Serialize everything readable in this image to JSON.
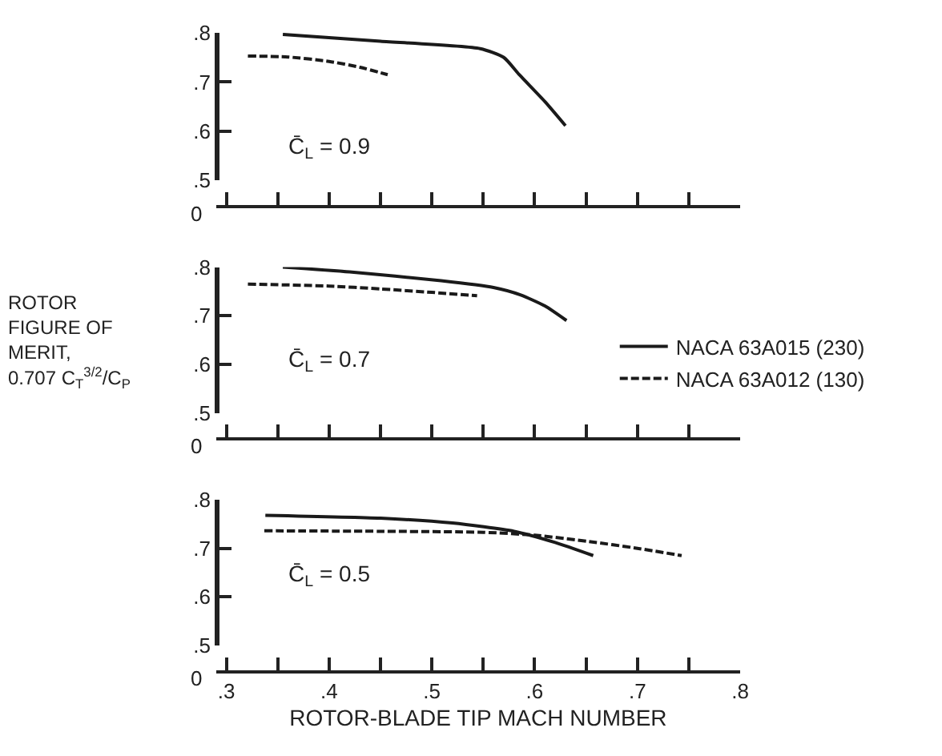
{
  "chart_data": [
    {
      "type": "line",
      "ylabel": "ROTOR\nFIGURE OF\nMERIT,\n0.707 C$_{T}$$^{3/2}$/C$_{P}$",
      "annotations": [
        "C̄$_{L}$ = 0.9",
        "0"
      ],
      "xlim": [
        0.29,
        0.8
      ],
      "xticks": [
        {
          "value": 0.3,
          "label": null
        },
        {
          "value": 0.35,
          "label": null
        },
        {
          "value": 0.4,
          "label": null
        },
        {
          "value": 0.45,
          "label": null
        },
        {
          "value": 0.5,
          "label": null
        },
        {
          "value": 0.55,
          "label": null
        },
        {
          "value": 0.6,
          "label": null
        },
        {
          "value": 0.65,
          "label": null
        },
        {
          "value": 0.7,
          "label": null
        },
        {
          "value": 0.75,
          "label": null
        },
        {
          "value": 0.8,
          "label": null
        }
      ],
      "ylim": [
        0.5,
        0.8
      ],
      "yticks": [
        {
          "value": 0.5,
          "label": ".5"
        },
        {
          "value": 0.6,
          "label": ".6"
        },
        {
          "value": 0.7,
          "label": ".7"
        },
        {
          "value": 0.8,
          "label": ".8"
        }
      ],
      "tick_labels": "y",
      "legend": false,
      "marker": "none",
      "series": [
        {
          "color": "#1a1a1a",
          "line_style": "solid",
          "x": [
            0.355,
            0.45,
            0.547,
            0.57,
            0.585,
            0.61,
            0.63
          ],
          "values": [
            0.797,
            0.783,
            0.768,
            0.75,
            0.715,
            0.66,
            0.611
          ]
        },
        {
          "color": "#1a1a1a",
          "line_style": "dashed",
          "x": [
            0.321,
            0.36,
            0.4,
            0.43,
            0.457
          ],
          "values": [
            0.753,
            0.751,
            0.742,
            0.73,
            0.715
          ]
        }
      ]
    },
    {
      "type": "line",
      "annotations": [
        "C̄$_{L}$ = 0.7",
        "0"
      ],
      "xlim": [
        0.29,
        0.8
      ],
      "xticks": [
        {
          "value": 0.3,
          "label": null
        },
        {
          "value": 0.35,
          "label": null
        },
        {
          "value": 0.4,
          "label": null
        },
        {
          "value": 0.45,
          "label": null
        },
        {
          "value": 0.5,
          "label": null
        },
        {
          "value": 0.55,
          "label": null
        },
        {
          "value": 0.6,
          "label": null
        },
        {
          "value": 0.65,
          "label": null
        },
        {
          "value": 0.7,
          "label": null
        },
        {
          "value": 0.75,
          "label": null
        },
        {
          "value": 0.8,
          "label": null
        }
      ],
      "ylim": [
        0.5,
        0.8
      ],
      "yticks": [
        {
          "value": 0.5,
          "label": ".5"
        },
        {
          "value": 0.6,
          "label": ".6"
        },
        {
          "value": 0.7,
          "label": ".7"
        },
        {
          "value": 0.8,
          "label": ".8"
        }
      ],
      "tick_labels": "y",
      "legend": "right",
      "marker": "none",
      "series": [
        {
          "name": "NACA 63A015 (230)",
          "color": "#1a1a1a",
          "line_style": "solid",
          "x": [
            0.355,
            0.42,
            0.509,
            0.56,
            0.586,
            0.61,
            0.631
          ],
          "values": [
            0.8,
            0.79,
            0.772,
            0.758,
            0.743,
            0.72,
            0.69
          ]
        },
        {
          "name": "NACA 63A012 (130)",
          "color": "#1a1a1a",
          "line_style": "dashed",
          "x": [
            0.321,
            0.4,
            0.45,
            0.5,
            0.544
          ],
          "values": [
            0.765,
            0.761,
            0.755,
            0.748,
            0.741
          ]
        }
      ]
    },
    {
      "type": "line",
      "xlabel": "ROTOR-BLADE TIP MACH NUMBER",
      "annotations": [
        "C̄$_{L}$ = 0.5",
        "0"
      ],
      "xlim": [
        0.29,
        0.8
      ],
      "xticks": [
        {
          "value": 0.3,
          "label": ".3"
        },
        {
          "value": 0.35,
          "label": null
        },
        {
          "value": 0.4,
          "label": ".4"
        },
        {
          "value": 0.45,
          "label": null
        },
        {
          "value": 0.5,
          "label": ".5"
        },
        {
          "value": 0.55,
          "label": null
        },
        {
          "value": 0.6,
          "label": ".6"
        },
        {
          "value": 0.65,
          "label": null
        },
        {
          "value": 0.7,
          "label": ".7"
        },
        {
          "value": 0.75,
          "label": null
        },
        {
          "value": 0.8,
          "label": ".8"
        }
      ],
      "ylim": [
        0.5,
        0.8
      ],
      "yticks": [
        {
          "value": 0.5,
          "label": ".5"
        },
        {
          "value": 0.6,
          "label": ".6"
        },
        {
          "value": 0.7,
          "label": ".7"
        },
        {
          "value": 0.8,
          "label": ".8"
        }
      ],
      "legend": false,
      "marker": "none",
      "series": [
        {
          "color": "#1a1a1a",
          "line_style": "solid",
          "x": [
            0.338,
            0.45,
            0.52,
            0.58,
            0.62,
            0.657
          ],
          "values": [
            0.768,
            0.762,
            0.752,
            0.735,
            0.712,
            0.685
          ]
        },
        {
          "color": "#1a1a1a",
          "line_style": "dashed",
          "x": [
            0.337,
            0.45,
            0.55,
            0.6,
            0.653,
            0.7,
            0.743
          ],
          "values": [
            0.736,
            0.735,
            0.733,
            0.727,
            0.714,
            0.7,
            0.685
          ]
        }
      ]
    }
  ]
}
